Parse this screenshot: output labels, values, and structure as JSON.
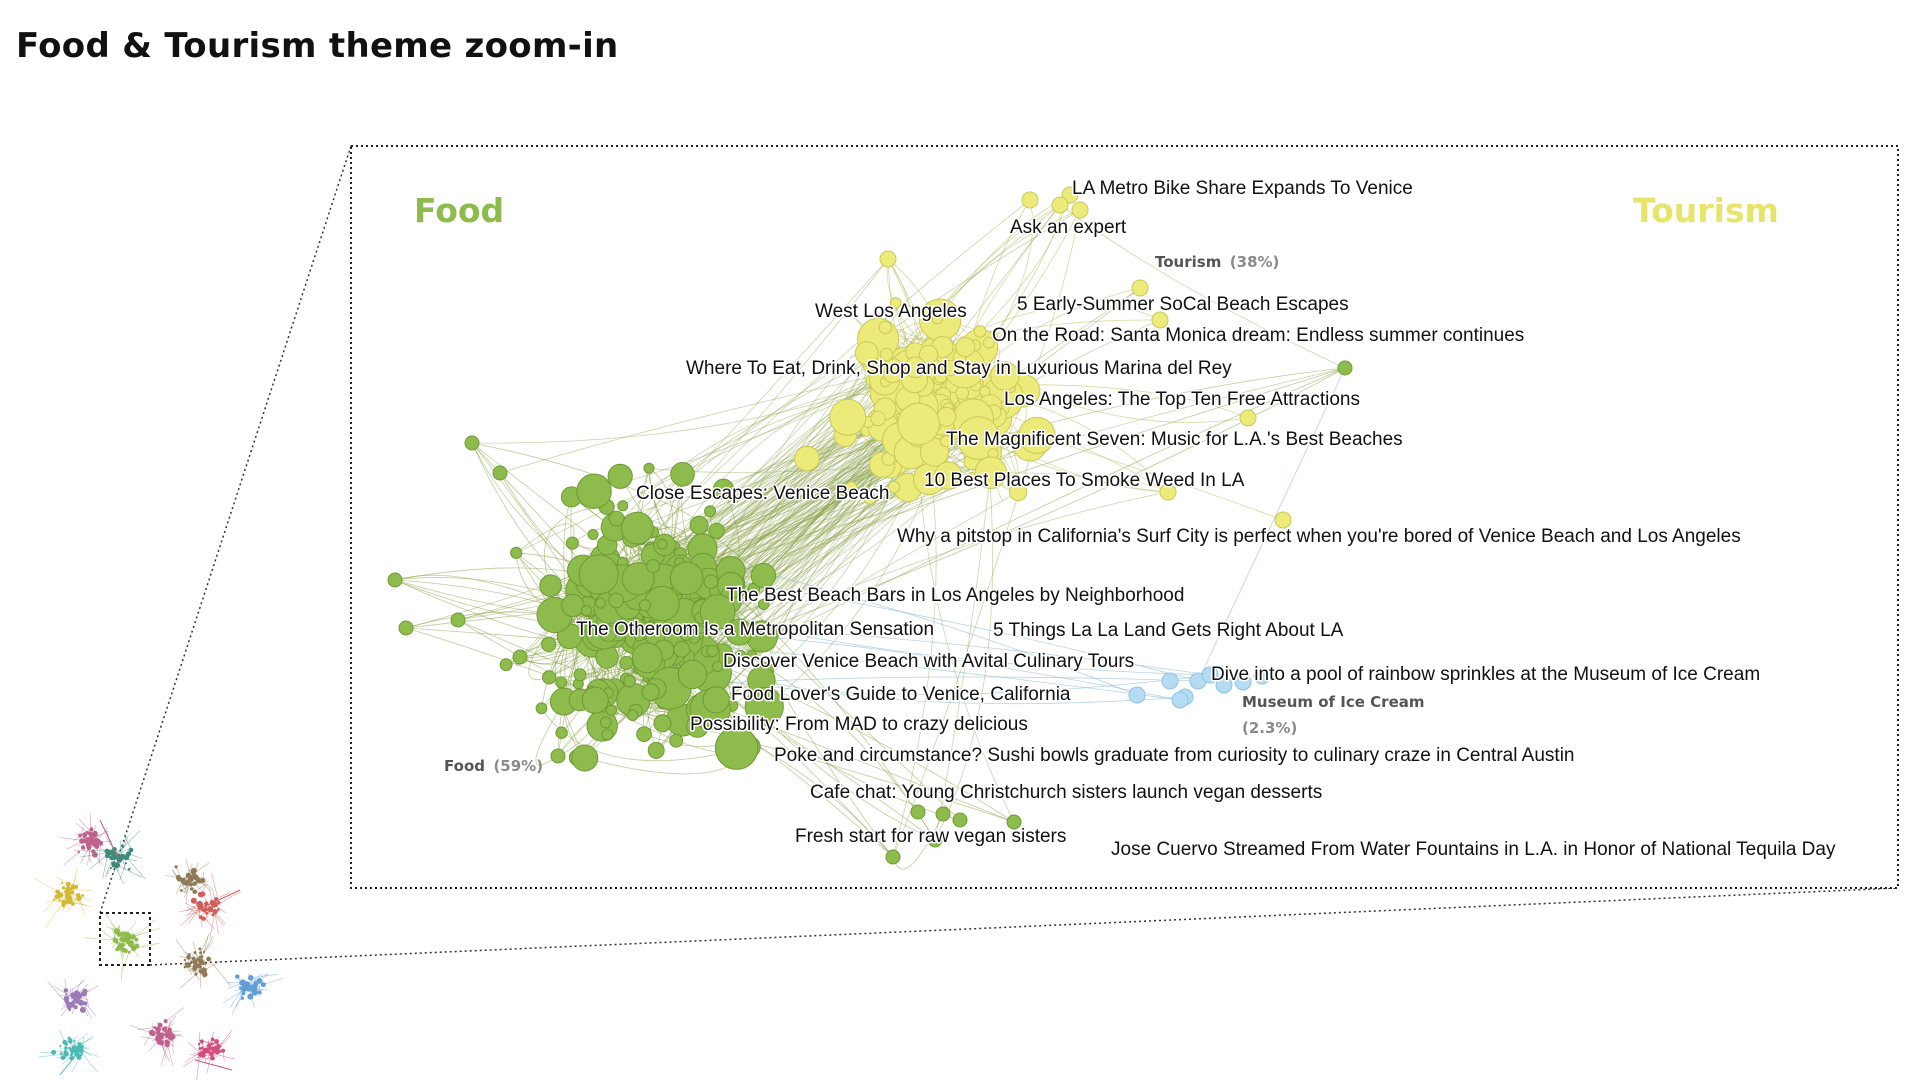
{
  "title": "Food & Tourism theme zoom-in",
  "themes": {
    "food": {
      "label": "Food",
      "color": "#8dbb4c"
    },
    "tourism": {
      "label": "Tourism",
      "color": "#e6e56a"
    }
  },
  "clusters": {
    "tourism": {
      "name": "Tourism",
      "pct": "(38%)"
    },
    "food": {
      "name": "Food",
      "pct": "(59%)"
    },
    "ice_cream": {
      "name": "Museum of Ice Cream",
      "pct": "(2.3%)",
      "color": "#a8d4ee"
    }
  },
  "colors": {
    "food_node": "#8dbb4c",
    "food_node_stroke": "#6f9a35",
    "tourism_node": "#eceb7a",
    "tourism_node_stroke": "#c9c85a",
    "ice_node": "#b5dcf2",
    "edge": "#8aa24a"
  },
  "labels": [
    "LA Metro Bike Share Expands To Venice",
    "Ask an expert",
    "5 Early-Summer SoCal Beach Escapes",
    "West Los Angeles",
    "On the Road: Santa Monica dream: Endless summer continues",
    "Where To Eat, Drink, Shop and Stay in Luxurious Marina del Rey",
    "Los Angeles: The Top Ten Free Attractions",
    "The Magnificent Seven: Music for L.A.'s Best Beaches",
    "10 Best Places To Smoke Weed In LA",
    "Close Escapes: Venice Beach",
    "Why a pitstop in California's Surf City is perfect when you're bored of Venice Beach and Los Angeles",
    "The Best Beach Bars in Los Angeles by Neighborhood",
    "The Otheroom Is a Metropolitan Sensation",
    "5 Things La La Land Gets Right About LA",
    "Discover Venice Beach with Avital Culinary Tours",
    "Dive into a pool of rainbow sprinkles at the Museum of Ice Cream",
    "Food Lover's Guide to Venice, California",
    "Possibility: From MAD to crazy delicious",
    "Poke and circumstance? Sushi bowls graduate from curiosity to culinary craze in Central Austin",
    "Cafe chat: Young Christchurch sisters launch vegan desserts",
    "Fresh start for raw vegan sisters",
    "Jose Cuervo Streamed From Water Fountains in L.A. in Honor of National Tequila Day"
  ],
  "overview_colors": [
    "#d4b83a",
    "#c0628e",
    "#3f8a7a",
    "#cf5f5a",
    "#8f7a55",
    "#9a7ab8",
    "#4bb9b4",
    "#8dbb4c",
    "#cf4f7f",
    "#5f9fd6"
  ]
}
